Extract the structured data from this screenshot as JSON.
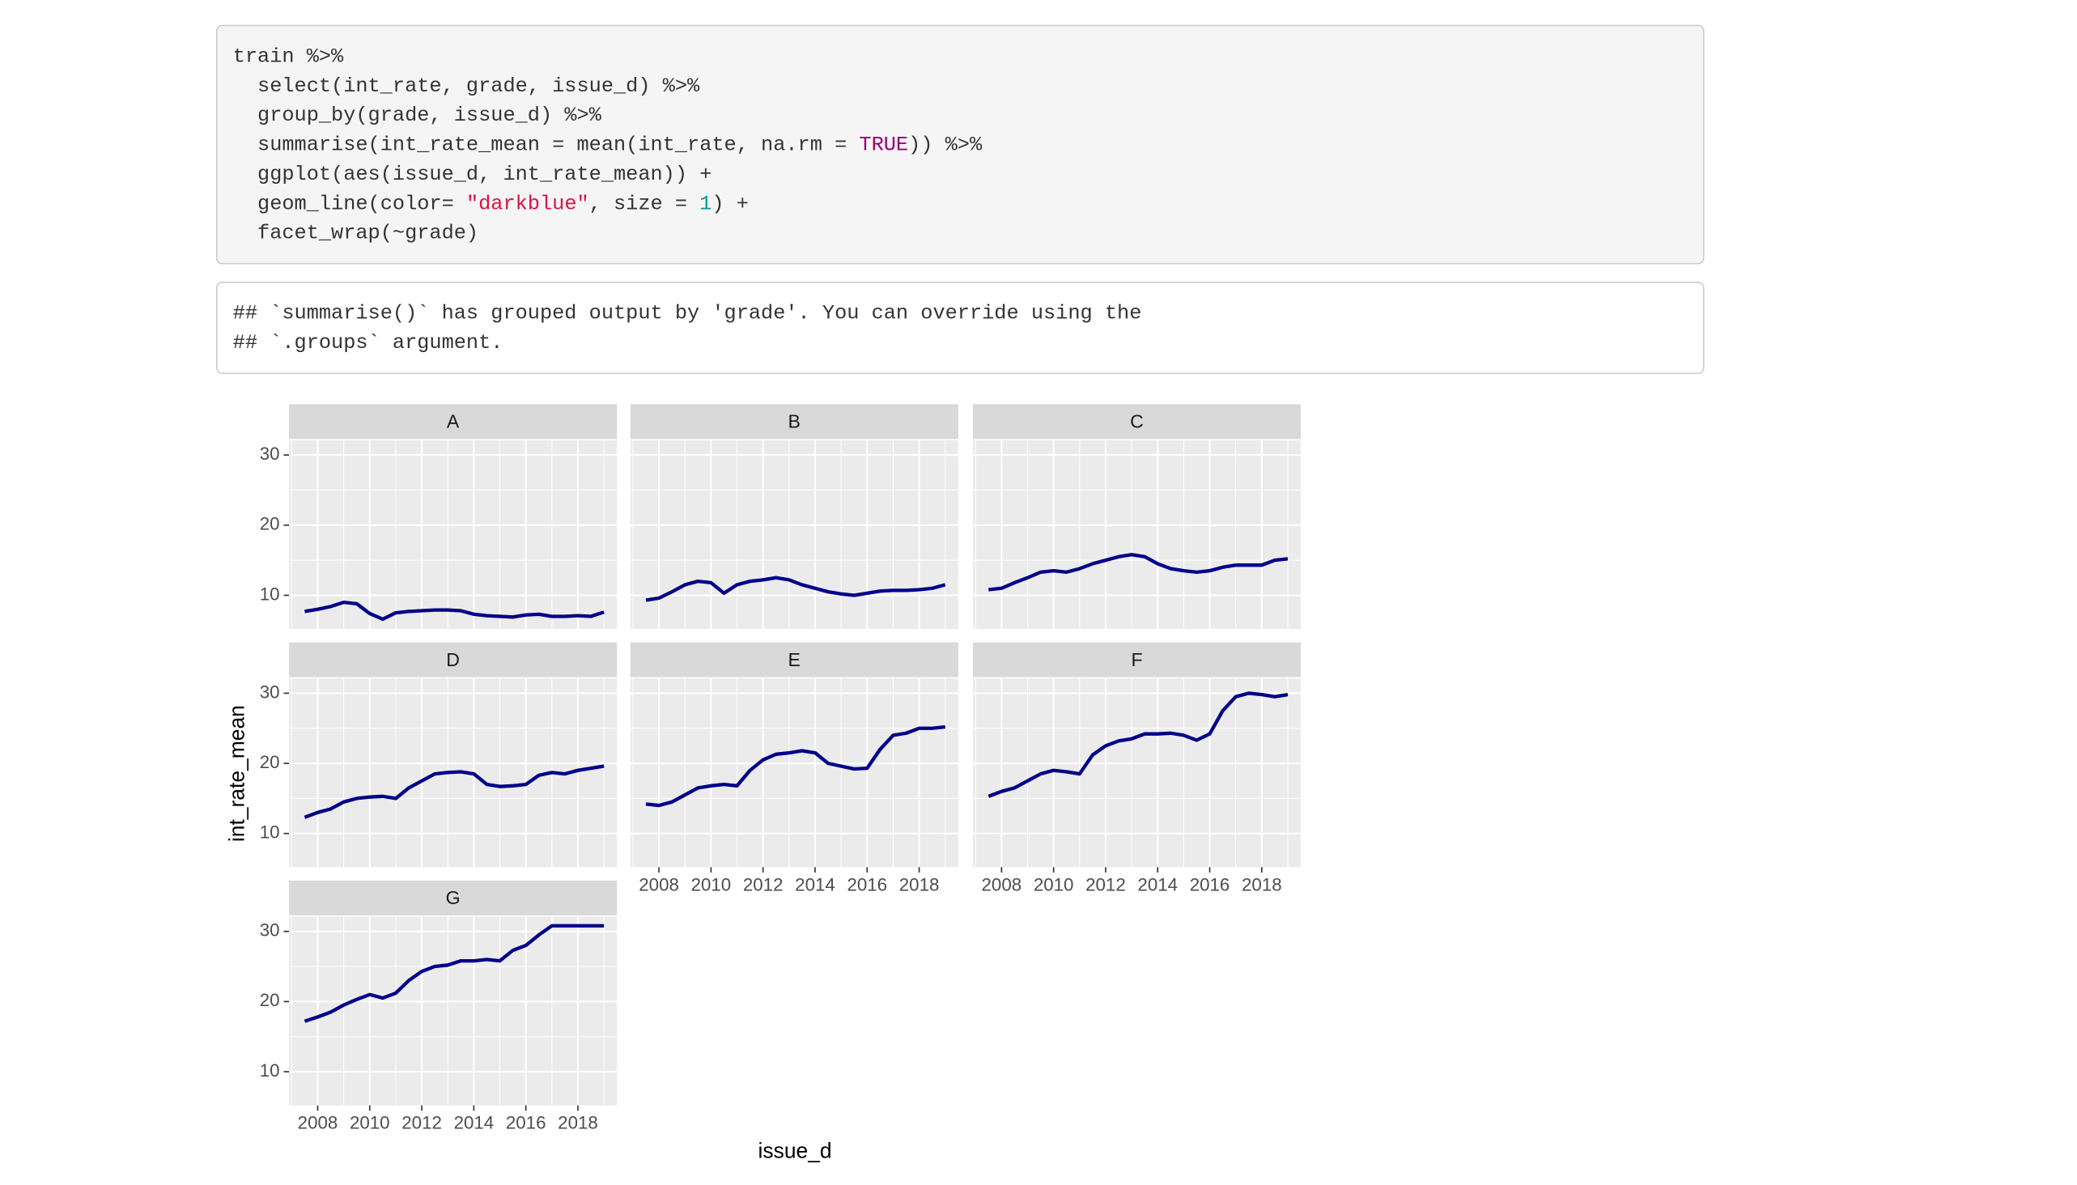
{
  "code": [
    [
      {
        "text": "train %>%"
      }
    ],
    [
      {
        "text": "  select(int_rate, grade, issue_d) %>%"
      }
    ],
    [
      {
        "text": "  group_by(grade, issue_d) %>%"
      }
    ],
    [
      {
        "text": "  summarise(int_rate_mean = mean(int_rate, na.rm = "
      },
      {
        "text": "TRUE",
        "color": "#990073"
      },
      {
        "text": ")) %>%"
      }
    ],
    [
      {
        "text": "  ggplot(aes(issue_d, int_rate_mean)) +"
      }
    ],
    [
      {
        "text": "  geom_line(color= "
      },
      {
        "text": "\"darkblue\"",
        "color": "#d14"
      },
      {
        "text": ", size = "
      },
      {
        "text": "1",
        "color": "#099"
      },
      {
        "text": ") +"
      }
    ],
    [
      {
        "text": "  facet_wrap(~grade)"
      }
    ]
  ],
  "output": [
    "## `summarise()` has grouped output by 'grade'. You can override using the",
    "## `.groups` argument."
  ],
  "axes": {
    "x_label": "issue_d",
    "y_label": "int_rate_mean",
    "xlim": [
      2006.9,
      2019.5
    ],
    "ylim": [
      5.2,
      32.1
    ],
    "xticks": [
      2008,
      2010,
      2012,
      2014,
      2016,
      2018
    ],
    "yticks": [
      10,
      20,
      30
    ],
    "color": "#00008b",
    "grid": true
  },
  "chart_data": [
    {
      "type": "line",
      "title": "A",
      "x": [
        2007.5,
        2008,
        2008.5,
        2009,
        2009.5,
        2010,
        2010.5,
        2011,
        2011.5,
        2012,
        2012.5,
        2013,
        2013.5,
        2014,
        2014.5,
        2015,
        2015.5,
        2016,
        2016.5,
        2017,
        2017.5,
        2018,
        2018.5,
        2019
      ],
      "values": [
        7.7,
        8.0,
        8.4,
        9.0,
        8.8,
        7.4,
        6.6,
        7.5,
        7.7,
        7.8,
        7.9,
        7.9,
        7.8,
        7.3,
        7.1,
        7.0,
        6.9,
        7.2,
        7.3,
        7.0,
        7.0,
        7.1,
        7.0,
        7.6
      ]
    },
    {
      "type": "line",
      "title": "B",
      "x": [
        2007.5,
        2008,
        2008.5,
        2009,
        2009.5,
        2010,
        2010.5,
        2011,
        2011.5,
        2012,
        2012.5,
        2013,
        2013.5,
        2014,
        2014.5,
        2015,
        2015.5,
        2016,
        2016.5,
        2017,
        2017.5,
        2018,
        2018.5,
        2019
      ],
      "values": [
        9.3,
        9.6,
        10.5,
        11.5,
        12.0,
        11.8,
        10.3,
        11.5,
        12.0,
        12.2,
        12.5,
        12.2,
        11.5,
        11.0,
        10.5,
        10.2,
        10.0,
        10.3,
        10.6,
        10.7,
        10.7,
        10.8,
        11.0,
        11.5
      ]
    },
    {
      "type": "line",
      "title": "C",
      "x": [
        2007.5,
        2008,
        2008.5,
        2009,
        2009.5,
        2010,
        2010.5,
        2011,
        2011.5,
        2012,
        2012.5,
        2013,
        2013.5,
        2014,
        2014.5,
        2015,
        2015.5,
        2016,
        2016.5,
        2017,
        2017.5,
        2018,
        2018.5,
        2019
      ],
      "values": [
        10.8,
        11.0,
        11.8,
        12.5,
        13.3,
        13.5,
        13.3,
        13.8,
        14.5,
        15.0,
        15.5,
        15.8,
        15.5,
        14.5,
        13.8,
        13.5,
        13.3,
        13.5,
        14.0,
        14.3,
        14.3,
        14.3,
        15.0,
        15.2
      ]
    },
    {
      "type": "line",
      "title": "D",
      "x": [
        2007.5,
        2008,
        2008.5,
        2009,
        2009.5,
        2010,
        2010.5,
        2011,
        2011.5,
        2012,
        2012.5,
        2013,
        2013.5,
        2014,
        2014.5,
        2015,
        2015.5,
        2016,
        2016.5,
        2017,
        2017.5,
        2018,
        2018.5,
        2019
      ],
      "values": [
        12.3,
        13.0,
        13.5,
        14.5,
        15.0,
        15.2,
        15.3,
        15.0,
        16.5,
        17.5,
        18.5,
        18.7,
        18.8,
        18.5,
        17.0,
        16.7,
        16.8,
        17.0,
        18.3,
        18.7,
        18.5,
        19.0,
        19.3,
        19.6
      ]
    },
    {
      "type": "line",
      "title": "E",
      "x": [
        2007.5,
        2008,
        2008.5,
        2009,
        2009.5,
        2010,
        2010.5,
        2011,
        2011.5,
        2012,
        2012.5,
        2013,
        2013.5,
        2014,
        2014.5,
        2015,
        2015.5,
        2016,
        2016.5,
        2017,
        2017.5,
        2018,
        2018.5,
        2019
      ],
      "values": [
        14.2,
        14.0,
        14.5,
        15.5,
        16.5,
        16.8,
        17.0,
        16.8,
        19.0,
        20.5,
        21.3,
        21.5,
        21.8,
        21.5,
        20.0,
        19.6,
        19.2,
        19.3,
        22.0,
        24.0,
        24.3,
        25.0,
        25.0,
        25.2
      ]
    },
    {
      "type": "line",
      "title": "F",
      "x": [
        2007.5,
        2008,
        2008.5,
        2009,
        2009.5,
        2010,
        2010.5,
        2011,
        2011.5,
        2012,
        2012.5,
        2013,
        2013.5,
        2014,
        2014.5,
        2015,
        2015.5,
        2016,
        2016.5,
        2017,
        2017.5,
        2018,
        2018.5,
        2019
      ],
      "values": [
        15.3,
        16.0,
        16.5,
        17.5,
        18.5,
        19.0,
        18.8,
        18.5,
        21.2,
        22.5,
        23.2,
        23.5,
        24.2,
        24.2,
        24.3,
        24.0,
        23.3,
        24.2,
        27.5,
        29.5,
        30.0,
        29.8,
        29.5,
        29.8
      ]
    },
    {
      "type": "line",
      "title": "G",
      "x": [
        2007.5,
        2008,
        2008.5,
        2009,
        2009.5,
        2010,
        2010.5,
        2011,
        2011.5,
        2012,
        2012.5,
        2013,
        2013.5,
        2014,
        2014.5,
        2015,
        2015.5,
        2016,
        2016.5,
        2017,
        2017.5,
        2018,
        2018.5,
        2019
      ],
      "values": [
        17.2,
        17.8,
        18.5,
        19.5,
        20.3,
        21.0,
        20.5,
        21.2,
        23.0,
        24.3,
        25.0,
        25.2,
        25.8,
        25.8,
        26.0,
        25.8,
        27.3,
        28.0,
        29.5,
        30.8,
        30.8,
        30.8,
        30.8,
        30.8
      ]
    }
  ]
}
